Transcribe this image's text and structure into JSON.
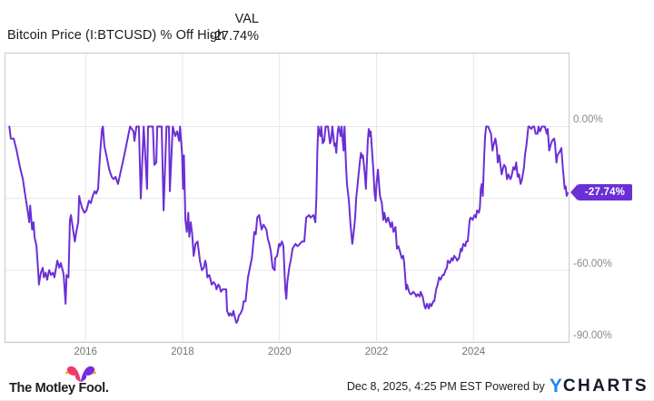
{
  "header": {
    "series_label": "Bitcoin Price (I:BTCUSD) % Off High",
    "column_header": "VAL",
    "value": "-27.74%"
  },
  "badge": {
    "label": "-27.74%",
    "color": "#6B2FD5"
  },
  "colors": {
    "line": "#6B2FD5",
    "badge": "#6B2FD5",
    "gridline": "#e7e7e7",
    "plot_border": "#c9c9c9",
    "axis_label": "#8a8a8a",
    "ycharts_blue": "#1E87F0",
    "ycharts_dark": "#131a2b",
    "fool_pink": "#EE3B6F",
    "fool_purple": "#7A2BDB",
    "fool_bell_yellow": "#FFB300"
  },
  "footer": {
    "timestamp": "Dec 8, 2025, 4:25 PM EST",
    "powered_by": "Powered by",
    "ycharts_y": "Y",
    "ycharts_rest": "CHARTS",
    "motley_fool": "The Motley Fool."
  },
  "chart_data": {
    "type": "line",
    "title": "Bitcoin Price (I:BTCUSD) % Off High",
    "series_name": "Bitcoin Price (I:BTCUSD) % Off High",
    "grid": true,
    "legend_position": "none",
    "last_value": -27.74,
    "last_value_label": "-27.74%",
    "x_axis": {
      "min": 2014.35,
      "max": 2025.96,
      "ticks": [
        2016,
        2018,
        2020,
        2022,
        2024
      ],
      "tick_labels": [
        "2016",
        "2018",
        "2020",
        "2022",
        "2024"
      ]
    },
    "y_axis": {
      "min": -90,
      "max": 30.5,
      "unit": "%",
      "gridline_values": [
        0,
        -30,
        -60,
        -90
      ],
      "visible_ticks": [
        {
          "value": 0,
          "label": "0.00%"
        },
        {
          "value": -60,
          "label": "-60.00%"
        },
        {
          "value": -90,
          "label": "-90.00%"
        }
      ]
    },
    "points": [
      [
        2014.43,
        0
      ],
      [
        2014.46,
        -5
      ],
      [
        2014.52,
        -5
      ],
      [
        2014.58,
        -10
      ],
      [
        2014.65,
        -17
      ],
      [
        2014.71,
        -22
      ],
      [
        2014.76,
        -29
      ],
      [
        2014.8,
        -34
      ],
      [
        2014.84,
        -40
      ],
      [
        2014.86,
        -33
      ],
      [
        2014.9,
        -43
      ],
      [
        2014.93,
        -40
      ],
      [
        2014.95,
        -46
      ],
      [
        2014.99,
        -50
      ],
      [
        2015.03,
        -62
      ],
      [
        2015.04,
        -66
      ],
      [
        2015.08,
        -61
      ],
      [
        2015.12,
        -59
      ],
      [
        2015.14,
        -63
      ],
      [
        2015.18,
        -61
      ],
      [
        2015.21,
        -64
      ],
      [
        2015.25,
        -60
      ],
      [
        2015.29,
        -62
      ],
      [
        2015.33,
        -61
      ],
      [
        2015.36,
        -63
      ],
      [
        2015.42,
        -56
      ],
      [
        2015.46,
        -59
      ],
      [
        2015.49,
        -57
      ],
      [
        2015.53,
        -60
      ],
      [
        2015.55,
        -62
      ],
      [
        2015.59,
        -74
      ],
      [
        2015.61,
        -62
      ],
      [
        2015.65,
        -63
      ],
      [
        2015.68,
        -39
      ],
      [
        2015.7,
        -37
      ],
      [
        2015.78,
        -48
      ],
      [
        2015.81,
        -44
      ],
      [
        2015.85,
        -40
      ],
      [
        2015.87,
        -29
      ],
      [
        2015.89,
        -31
      ],
      [
        2015.93,
        -34
      ],
      [
        2015.98,
        -36
      ],
      [
        2016.02,
        -35
      ],
      [
        2016.07,
        -31
      ],
      [
        2016.11,
        -32
      ],
      [
        2016.15,
        -29
      ],
      [
        2016.19,
        -27
      ],
      [
        2016.22,
        -28
      ],
      [
        2016.26,
        -26
      ],
      [
        2016.3,
        -12
      ],
      [
        2016.34,
        -1
      ],
      [
        2016.36,
        0
      ],
      [
        2016.39,
        -8
      ],
      [
        2016.43,
        -12
      ],
      [
        2016.49,
        -18
      ],
      [
        2016.54,
        -21
      ],
      [
        2016.58,
        -22
      ],
      [
        2016.62,
        -21
      ],
      [
        2016.67,
        -24
      ],
      [
        2016.8,
        -12
      ],
      [
        2016.92,
        0
      ],
      [
        2016.99,
        -2
      ],
      [
        2017.01,
        -6
      ],
      [
        2017.05,
        0
      ],
      [
        2017.1,
        0
      ],
      [
        2017.14,
        -30
      ],
      [
        2017.2,
        0
      ],
      [
        2017.27,
        -26
      ],
      [
        2017.29,
        0
      ],
      [
        2017.39,
        0
      ],
      [
        2017.42,
        -16
      ],
      [
        2017.46,
        -15
      ],
      [
        2017.48,
        0
      ],
      [
        2017.57,
        0
      ],
      [
        2017.61,
        -35
      ],
      [
        2017.67,
        0
      ],
      [
        2017.72,
        0
      ],
      [
        2017.74,
        -27
      ],
      [
        2017.8,
        0
      ],
      [
        2017.85,
        -4
      ],
      [
        2017.89,
        -2
      ],
      [
        2017.93,
        -6
      ],
      [
        2017.95,
        0
      ],
      [
        2017.99,
        -11
      ],
      [
        2018.01,
        -26
      ],
      [
        2018.03,
        -12
      ],
      [
        2018.06,
        -39
      ],
      [
        2018.09,
        -44
      ],
      [
        2018.12,
        -36
      ],
      [
        2018.14,
        -46
      ],
      [
        2018.17,
        -40
      ],
      [
        2018.2,
        -45
      ],
      [
        2018.23,
        -54
      ],
      [
        2018.27,
        -49
      ],
      [
        2018.31,
        -48
      ],
      [
        2018.36,
        -56
      ],
      [
        2018.4,
        -60
      ],
      [
        2018.44,
        -59
      ],
      [
        2018.47,
        -56
      ],
      [
        2018.49,
        -58
      ],
      [
        2018.51,
        -63
      ],
      [
        2018.55,
        -62
      ],
      [
        2018.58,
        -64
      ],
      [
        2018.6,
        -66
      ],
      [
        2018.64,
        -65
      ],
      [
        2018.68,
        -66
      ],
      [
        2018.7,
        -68
      ],
      [
        2018.74,
        -66
      ],
      [
        2018.77,
        -67
      ],
      [
        2018.79,
        -69
      ],
      [
        2018.83,
        -68
      ],
      [
        2018.86,
        -68
      ],
      [
        2018.9,
        -68
      ],
      [
        2018.92,
        -77
      ],
      [
        2018.96,
        -79
      ],
      [
        2018.98,
        -78
      ],
      [
        2019.02,
        -79
      ],
      [
        2019.05,
        -77
      ],
      [
        2019.07,
        -79
      ],
      [
        2019.11,
        -82
      ],
      [
        2019.14,
        -81
      ],
      [
        2019.16,
        -79
      ],
      [
        2019.2,
        -78
      ],
      [
        2019.24,
        -76
      ],
      [
        2019.26,
        -73
      ],
      [
        2019.3,
        -73
      ],
      [
        2019.35,
        -63
      ],
      [
        2019.43,
        -55
      ],
      [
        2019.48,
        -44
      ],
      [
        2019.51,
        -45
      ],
      [
        2019.54,
        -38
      ],
      [
        2019.58,
        -37
      ],
      [
        2019.63,
        -43
      ],
      [
        2019.67,
        -41
      ],
      [
        2019.73,
        -43
      ],
      [
        2019.76,
        -47
      ],
      [
        2019.79,
        -49
      ],
      [
        2019.82,
        -52
      ],
      [
        2019.86,
        -59
      ],
      [
        2019.9,
        -60
      ],
      [
        2019.91,
        -55
      ],
      [
        2019.95,
        -54
      ],
      [
        2019.99,
        -49
      ],
      [
        2020.01,
        -50
      ],
      [
        2020.05,
        -48
      ],
      [
        2020.08,
        -50
      ],
      [
        2020.12,
        -68
      ],
      [
        2020.14,
        -72
      ],
      [
        2020.16,
        -65
      ],
      [
        2020.2,
        -59
      ],
      [
        2020.23,
        -56
      ],
      [
        2020.27,
        -51
      ],
      [
        2020.33,
        -49
      ],
      [
        2020.37,
        -50
      ],
      [
        2020.42,
        -49
      ],
      [
        2020.46,
        -48
      ],
      [
        2020.51,
        -48
      ],
      [
        2020.55,
        -38
      ],
      [
        2020.61,
        -37
      ],
      [
        2020.64,
        -38
      ],
      [
        2020.7,
        -37
      ],
      [
        2020.74,
        -40
      ],
      [
        2020.76,
        -30
      ],
      [
        2020.78,
        -10
      ],
      [
        2020.8,
        0
      ],
      [
        2020.84,
        -4
      ],
      [
        2020.86,
        0
      ],
      [
        2020.89,
        -7
      ],
      [
        2020.92,
        -6
      ],
      [
        2020.95,
        0
      ],
      [
        2021.0,
        0
      ],
      [
        2021.04,
        -7
      ],
      [
        2021.06,
        -6
      ],
      [
        2021.09,
        0
      ],
      [
        2021.13,
        -8
      ],
      [
        2021.15,
        -7
      ],
      [
        2021.17,
        -11
      ],
      [
        2021.2,
        -2
      ],
      [
        2021.22,
        0
      ],
      [
        2021.26,
        -4
      ],
      [
        2021.28,
        0
      ],
      [
        2021.32,
        -10
      ],
      [
        2021.34,
        0
      ],
      [
        2021.37,
        -16
      ],
      [
        2021.39,
        -24
      ],
      [
        2021.43,
        -31
      ],
      [
        2021.46,
        -40
      ],
      [
        2021.5,
        -49
      ],
      [
        2021.52,
        -46
      ],
      [
        2021.56,
        -38
      ],
      [
        2021.58,
        -30
      ],
      [
        2021.6,
        -26
      ],
      [
        2021.64,
        -18
      ],
      [
        2021.66,
        -14
      ],
      [
        2021.68,
        -11
      ],
      [
        2021.7,
        -13
      ],
      [
        2021.72,
        -12
      ],
      [
        2021.76,
        -20
      ],
      [
        2021.78,
        -26
      ],
      [
        2021.8,
        -16
      ],
      [
        2021.82,
        -6
      ],
      [
        2021.84,
        -1
      ],
      [
        2021.86,
        -4
      ],
      [
        2021.88,
        -2
      ],
      [
        2021.9,
        -8
      ],
      [
        2021.92,
        -14
      ],
      [
        2021.94,
        -20
      ],
      [
        2021.96,
        -28
      ],
      [
        2021.98,
        -31
      ],
      [
        2022.0,
        -24
      ],
      [
        2022.03,
        -18
      ],
      [
        2022.07,
        -29
      ],
      [
        2022.11,
        -32
      ],
      [
        2022.14,
        -39
      ],
      [
        2022.16,
        -36
      ],
      [
        2022.2,
        -40
      ],
      [
        2022.24,
        -38
      ],
      [
        2022.29,
        -42
      ],
      [
        2022.32,
        -40
      ],
      [
        2022.35,
        -44
      ],
      [
        2022.39,
        -42
      ],
      [
        2022.42,
        -51
      ],
      [
        2022.45,
        -50
      ],
      [
        2022.48,
        -52
      ],
      [
        2022.52,
        -55
      ],
      [
        2022.55,
        -54
      ],
      [
        2022.57,
        -57
      ],
      [
        2022.61,
        -68
      ],
      [
        2022.63,
        -66
      ],
      [
        2022.67,
        -69
      ],
      [
        2022.7,
        -70
      ],
      [
        2022.72,
        -70
      ],
      [
        2022.76,
        -69
      ],
      [
        2022.8,
        -70
      ],
      [
        2022.82,
        -71
      ],
      [
        2022.85,
        -70
      ],
      [
        2022.89,
        -71
      ],
      [
        2022.91,
        -69
      ],
      [
        2022.95,
        -71
      ],
      [
        2022.99,
        -75
      ],
      [
        2023.01,
        -76
      ],
      [
        2023.04,
        -74
      ],
      [
        2023.08,
        -76
      ],
      [
        2023.1,
        -74
      ],
      [
        2023.13,
        -75
      ],
      [
        2023.17,
        -73
      ],
      [
        2023.19,
        -73
      ],
      [
        2023.23,
        -68
      ],
      [
        2023.26,
        -66
      ],
      [
        2023.29,
        -63
      ],
      [
        2023.32,
        -64
      ],
      [
        2023.36,
        -62
      ],
      [
        2023.39,
        -62
      ],
      [
        2023.42,
        -60
      ],
      [
        2023.45,
        -59
      ],
      [
        2023.47,
        -56
      ],
      [
        2023.51,
        -57
      ],
      [
        2023.55,
        -55
      ],
      [
        2023.57,
        -56
      ],
      [
        2023.6,
        -54
      ],
      [
        2023.64,
        -55
      ],
      [
        2023.66,
        -56
      ],
      [
        2023.7,
        -55
      ],
      [
        2023.74,
        -51
      ],
      [
        2023.76,
        -52
      ],
      [
        2023.79,
        -49
      ],
      [
        2023.83,
        -50
      ],
      [
        2023.85,
        -48
      ],
      [
        2023.88,
        -48
      ],
      [
        2023.92,
        -39
      ],
      [
        2023.94,
        -38
      ],
      [
        2023.98,
        -39
      ],
      [
        2024.02,
        -37
      ],
      [
        2024.05,
        -38
      ],
      [
        2024.07,
        -35
      ],
      [
        2024.11,
        -36
      ],
      [
        2024.13,
        -34
      ],
      [
        2024.15,
        -26
      ],
      [
        2024.17,
        -24
      ],
      [
        2024.19,
        -29
      ],
      [
        2024.22,
        -12
      ],
      [
        2024.24,
        -4
      ],
      [
        2024.26,
        0
      ],
      [
        2024.3,
        0
      ],
      [
        2024.32,
        -1
      ],
      [
        2024.36,
        -3
      ],
      [
        2024.39,
        -10
      ],
      [
        2024.41,
        -8
      ],
      [
        2024.45,
        -5
      ],
      [
        2024.48,
        -9
      ],
      [
        2024.5,
        -15
      ],
      [
        2024.53,
        -12
      ],
      [
        2024.58,
        -20
      ],
      [
        2024.6,
        -18
      ],
      [
        2024.63,
        -16
      ],
      [
        2024.66,
        -17
      ],
      [
        2024.69,
        -22
      ],
      [
        2024.72,
        -20
      ],
      [
        2024.76,
        -22
      ],
      [
        2024.78,
        -21
      ],
      [
        2024.82,
        -17
      ],
      [
        2024.85,
        -18
      ],
      [
        2024.88,
        -15
      ],
      [
        2024.91,
        -21
      ],
      [
        2024.94,
        -20
      ],
      [
        2024.97,
        -24
      ],
      [
        2025.0,
        -22
      ],
      [
        2025.04,
        -17
      ],
      [
        2025.06,
        -12
      ],
      [
        2025.09,
        -8
      ],
      [
        2025.13,
        0
      ],
      [
        2025.15,
        0
      ],
      [
        2025.19,
        -1
      ],
      [
        2025.22,
        0
      ],
      [
        2025.25,
        0
      ],
      [
        2025.28,
        -3
      ],
      [
        2025.32,
        -3
      ],
      [
        2025.34,
        0
      ],
      [
        2025.37,
        -2
      ],
      [
        2025.41,
        0
      ],
      [
        2025.43,
        0
      ],
      [
        2025.47,
        0
      ],
      [
        2025.51,
        -3
      ],
      [
        2025.53,
        -1
      ],
      [
        2025.56,
        -10
      ],
      [
        2025.6,
        -7
      ],
      [
        2025.62,
        -6
      ],
      [
        2025.66,
        -5
      ],
      [
        2025.68,
        -7
      ],
      [
        2025.71,
        -15
      ],
      [
        2025.73,
        -12
      ],
      [
        2025.79,
        -10
      ],
      [
        2025.81,
        -9
      ],
      [
        2025.84,
        -17
      ],
      [
        2025.88,
        -26
      ],
      [
        2025.9,
        -25
      ],
      [
        2025.92,
        -29
      ],
      [
        2025.94,
        -27.74
      ]
    ]
  }
}
